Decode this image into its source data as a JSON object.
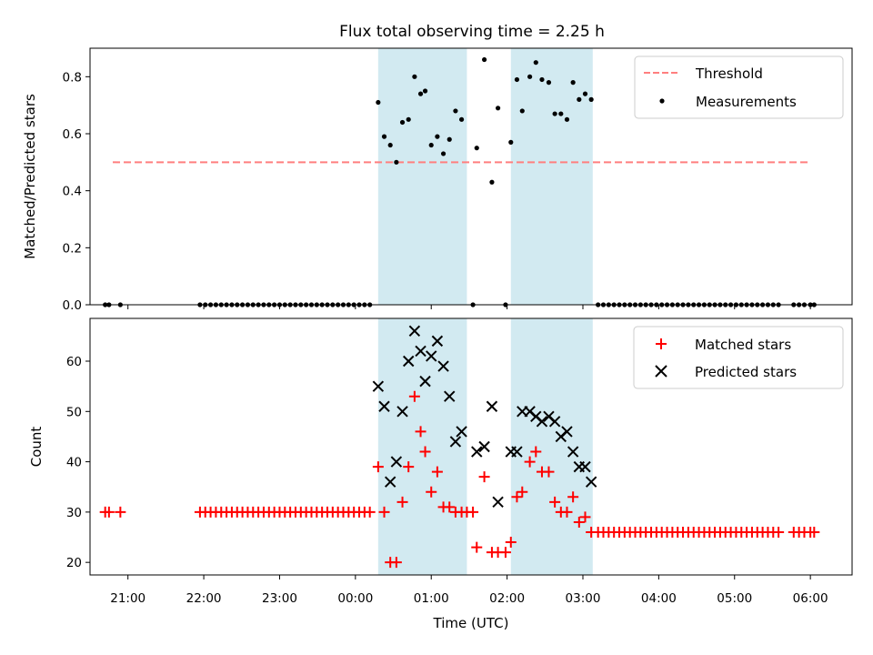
{
  "chart_data": [
    {
      "type": "scatter",
      "title": "Flux total observing time = 2.25 h",
      "xlabel": "",
      "ylabel": "Matched/Predicted stars",
      "ylim": [
        0,
        0.9
      ],
      "yticks": [
        "0.0",
        "0.2",
        "0.4",
        "0.6",
        "0.8"
      ],
      "xlim": [
        -3.5,
        6.55
      ],
      "legend": [
        "Threshold",
        "Measurements"
      ],
      "legend_position": "top-right",
      "threshold": {
        "y": 0.5,
        "x_start": -3.2,
        "x_end": 6.0,
        "color": "#ff7f7f"
      },
      "shaded_intervals": [
        [
          0.3,
          1.47
        ],
        [
          2.05,
          3.13
        ]
      ],
      "shade_color": "#add8e6",
      "series": [
        {
          "name": "Measurements",
          "color": "#000000",
          "points": [
            [
              -3.3,
              0
            ],
            [
              -3.25,
              0
            ],
            [
              -3.1,
              0
            ],
            [
              -2.05,
              0
            ],
            [
              -1.98,
              0
            ],
            [
              -1.91,
              0
            ],
            [
              -1.84,
              0
            ],
            [
              -1.77,
              0
            ],
            [
              -1.7,
              0
            ],
            [
              -1.63,
              0
            ],
            [
              -1.56,
              0
            ],
            [
              -1.49,
              0
            ],
            [
              -1.42,
              0
            ],
            [
              -1.35,
              0
            ],
            [
              -1.28,
              0
            ],
            [
              -1.21,
              0
            ],
            [
              -1.14,
              0
            ],
            [
              -1.07,
              0
            ],
            [
              -1.0,
              0
            ],
            [
              -0.93,
              0
            ],
            [
              -0.86,
              0
            ],
            [
              -0.79,
              0
            ],
            [
              -0.72,
              0
            ],
            [
              -0.65,
              0
            ],
            [
              -0.58,
              0
            ],
            [
              -0.51,
              0
            ],
            [
              -0.44,
              0
            ],
            [
              -0.37,
              0
            ],
            [
              -0.3,
              0
            ],
            [
              -0.23,
              0
            ],
            [
              -0.16,
              0
            ],
            [
              -0.09,
              0
            ],
            [
              -0.02,
              0
            ],
            [
              0.05,
              0
            ],
            [
              0.12,
              0
            ],
            [
              0.19,
              0
            ],
            [
              0.3,
              0.71
            ],
            [
              0.38,
              0.59
            ],
            [
              0.46,
              0.56
            ],
            [
              0.54,
              0.5
            ],
            [
              0.62,
              0.64
            ],
            [
              0.7,
              0.65
            ],
            [
              0.78,
              0.8
            ],
            [
              0.86,
              0.74
            ],
            [
              0.92,
              0.75
            ],
            [
              1.0,
              0.56
            ],
            [
              1.08,
              0.59
            ],
            [
              1.16,
              0.53
            ],
            [
              1.24,
              0.58
            ],
            [
              1.32,
              0.68
            ],
            [
              1.4,
              0.65
            ],
            [
              1.55,
              0
            ],
            [
              1.6,
              0.55
            ],
            [
              1.7,
              0.86
            ],
            [
              1.8,
              0.43
            ],
            [
              1.88,
              0.69
            ],
            [
              1.98,
              0
            ],
            [
              2.05,
              0.57
            ],
            [
              2.13,
              0.79
            ],
            [
              2.2,
              0.68
            ],
            [
              2.3,
              0.8
            ],
            [
              2.38,
              0.85
            ],
            [
              2.46,
              0.79
            ],
            [
              2.55,
              0.78
            ],
            [
              2.63,
              0.67
            ],
            [
              2.71,
              0.67
            ],
            [
              2.79,
              0.65
            ],
            [
              2.87,
              0.78
            ],
            [
              2.95,
              0.72
            ],
            [
              3.03,
              0.74
            ],
            [
              3.11,
              0.72
            ],
            [
              3.2,
              0
            ],
            [
              3.27,
              0
            ],
            [
              3.34,
              0
            ],
            [
              3.41,
              0
            ],
            [
              3.48,
              0
            ],
            [
              3.55,
              0
            ],
            [
              3.62,
              0
            ],
            [
              3.69,
              0
            ],
            [
              3.76,
              0
            ],
            [
              3.83,
              0
            ],
            [
              3.9,
              0
            ],
            [
              3.97,
              0
            ],
            [
              4.04,
              0
            ],
            [
              4.11,
              0
            ],
            [
              4.18,
              0
            ],
            [
              4.25,
              0
            ],
            [
              4.32,
              0
            ],
            [
              4.39,
              0
            ],
            [
              4.46,
              0
            ],
            [
              4.53,
              0
            ],
            [
              4.6,
              0
            ],
            [
              4.67,
              0
            ],
            [
              4.74,
              0
            ],
            [
              4.81,
              0
            ],
            [
              4.88,
              0
            ],
            [
              4.95,
              0
            ],
            [
              5.02,
              0
            ],
            [
              5.09,
              0
            ],
            [
              5.16,
              0
            ],
            [
              5.23,
              0
            ],
            [
              5.3,
              0
            ],
            [
              5.37,
              0
            ],
            [
              5.44,
              0
            ],
            [
              5.51,
              0
            ],
            [
              5.58,
              0
            ],
            [
              5.78,
              0
            ],
            [
              5.85,
              0
            ],
            [
              5.92,
              0
            ],
            [
              6.0,
              0
            ],
            [
              6.05,
              0
            ]
          ]
        }
      ]
    },
    {
      "type": "scatter",
      "title": "",
      "xlabel": "Time (UTC)",
      "ylabel": "Count",
      "ylim": [
        17.5,
        68.5
      ],
      "yticks": [
        "20",
        "30",
        "40",
        "50",
        "60"
      ],
      "xlim": [
        -3.5,
        6.55
      ],
      "x_ticks": [
        "21:00",
        "22:00",
        "23:00",
        "00:00",
        "01:00",
        "02:00",
        "03:00",
        "04:00",
        "05:00",
        "06:00"
      ],
      "legend": [
        "Matched stars",
        "Predicted stars"
      ],
      "legend_position": "top-right",
      "shaded_intervals": [
        [
          0.3,
          1.47
        ],
        [
          2.05,
          3.13
        ]
      ],
      "shade_color": "#add8e6",
      "series": [
        {
          "name": "Matched stars",
          "color": "#ff0000",
          "marker": "plus",
          "points": [
            [
              -3.3,
              30
            ],
            [
              -3.25,
              30
            ],
            [
              -3.1,
              30
            ],
            [
              -2.05,
              30
            ],
            [
              -1.98,
              30
            ],
            [
              -1.91,
              30
            ],
            [
              -1.84,
              30
            ],
            [
              -1.77,
              30
            ],
            [
              -1.7,
              30
            ],
            [
              -1.63,
              30
            ],
            [
              -1.56,
              30
            ],
            [
              -1.49,
              30
            ],
            [
              -1.42,
              30
            ],
            [
              -1.35,
              30
            ],
            [
              -1.28,
              30
            ],
            [
              -1.21,
              30
            ],
            [
              -1.14,
              30
            ],
            [
              -1.07,
              30
            ],
            [
              -1.0,
              30
            ],
            [
              -0.93,
              30
            ],
            [
              -0.86,
              30
            ],
            [
              -0.79,
              30
            ],
            [
              -0.72,
              30
            ],
            [
              -0.65,
              30
            ],
            [
              -0.58,
              30
            ],
            [
              -0.51,
              30
            ],
            [
              -0.44,
              30
            ],
            [
              -0.37,
              30
            ],
            [
              -0.3,
              30
            ],
            [
              -0.23,
              30
            ],
            [
              -0.16,
              30
            ],
            [
              -0.09,
              30
            ],
            [
              -0.02,
              30
            ],
            [
              0.05,
              30
            ],
            [
              0.12,
              30
            ],
            [
              0.19,
              30
            ],
            [
              0.3,
              39
            ],
            [
              0.38,
              30
            ],
            [
              0.46,
              20
            ],
            [
              0.54,
              20
            ],
            [
              0.62,
              32
            ],
            [
              0.7,
              39
            ],
            [
              0.78,
              53
            ],
            [
              0.86,
              46
            ],
            [
              0.92,
              42
            ],
            [
              1.0,
              34
            ],
            [
              1.08,
              38
            ],
            [
              1.16,
              31
            ],
            [
              1.24,
              31
            ],
            [
              1.32,
              30
            ],
            [
              1.4,
              30
            ],
            [
              1.47,
              30
            ],
            [
              1.55,
              30
            ],
            [
              1.6,
              23
            ],
            [
              1.7,
              37
            ],
            [
              1.8,
              22
            ],
            [
              1.88,
              22
            ],
            [
              1.98,
              22
            ],
            [
              2.05,
              24
            ],
            [
              2.13,
              33
            ],
            [
              2.2,
              34
            ],
            [
              2.3,
              40
            ],
            [
              2.38,
              42
            ],
            [
              2.46,
              38
            ],
            [
              2.55,
              38
            ],
            [
              2.63,
              32
            ],
            [
              2.71,
              30
            ],
            [
              2.79,
              30
            ],
            [
              2.87,
              33
            ],
            [
              2.95,
              28
            ],
            [
              3.03,
              29
            ],
            [
              3.11,
              26
            ],
            [
              3.2,
              26
            ],
            [
              3.27,
              26
            ],
            [
              3.34,
              26
            ],
            [
              3.41,
              26
            ],
            [
              3.48,
              26
            ],
            [
              3.55,
              26
            ],
            [
              3.62,
              26
            ],
            [
              3.69,
              26
            ],
            [
              3.76,
              26
            ],
            [
              3.83,
              26
            ],
            [
              3.9,
              26
            ],
            [
              3.97,
              26
            ],
            [
              4.04,
              26
            ],
            [
              4.11,
              26
            ],
            [
              4.18,
              26
            ],
            [
              4.25,
              26
            ],
            [
              4.32,
              26
            ],
            [
              4.39,
              26
            ],
            [
              4.46,
              26
            ],
            [
              4.53,
              26
            ],
            [
              4.6,
              26
            ],
            [
              4.67,
              26
            ],
            [
              4.74,
              26
            ],
            [
              4.81,
              26
            ],
            [
              4.88,
              26
            ],
            [
              4.95,
              26
            ],
            [
              5.02,
              26
            ],
            [
              5.09,
              26
            ],
            [
              5.16,
              26
            ],
            [
              5.23,
              26
            ],
            [
              5.3,
              26
            ],
            [
              5.37,
              26
            ],
            [
              5.44,
              26
            ],
            [
              5.51,
              26
            ],
            [
              5.58,
              26
            ],
            [
              5.78,
              26
            ],
            [
              5.85,
              26
            ],
            [
              5.92,
              26
            ],
            [
              6.0,
              26
            ],
            [
              6.05,
              26
            ]
          ]
        },
        {
          "name": "Predicted stars",
          "color": "#000000",
          "marker": "x",
          "points": [
            [
              0.3,
              55
            ],
            [
              0.38,
              51
            ],
            [
              0.46,
              36
            ],
            [
              0.54,
              40
            ],
            [
              0.62,
              50
            ],
            [
              0.7,
              60
            ],
            [
              0.78,
              66
            ],
            [
              0.86,
              62
            ],
            [
              0.92,
              56
            ],
            [
              1.0,
              61
            ],
            [
              1.08,
              64
            ],
            [
              1.16,
              59
            ],
            [
              1.24,
              53
            ],
            [
              1.32,
              44
            ],
            [
              1.4,
              46
            ],
            [
              1.6,
              42
            ],
            [
              1.7,
              43
            ],
            [
              1.8,
              51
            ],
            [
              1.88,
              32
            ],
            [
              2.05,
              42
            ],
            [
              2.13,
              42
            ],
            [
              2.2,
              50
            ],
            [
              2.3,
              50
            ],
            [
              2.38,
              49
            ],
            [
              2.46,
              48
            ],
            [
              2.55,
              49
            ],
            [
              2.63,
              48
            ],
            [
              2.71,
              45
            ],
            [
              2.79,
              46
            ],
            [
              2.87,
              42
            ],
            [
              2.95,
              39
            ],
            [
              3.03,
              39
            ],
            [
              3.11,
              36
            ]
          ]
        }
      ]
    }
  ]
}
